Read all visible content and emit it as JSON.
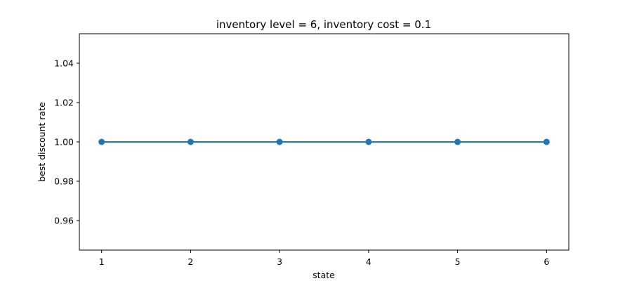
{
  "chart_data": {
    "type": "line",
    "title": "inventory level = 6, inventory cost = 0.1",
    "xlabel": "state",
    "ylabel": "best discount rate",
    "x": [
      1,
      2,
      3,
      4,
      5,
      6
    ],
    "series": [
      {
        "values": [
          1.0,
          1.0,
          1.0,
          1.0,
          1.0,
          1.0
        ],
        "color": "#1f77b4",
        "marker": "circle"
      }
    ],
    "xlim": [
      0.75,
      6.25
    ],
    "ylim": [
      0.945,
      1.055
    ],
    "xticks": [
      1,
      2,
      3,
      4,
      5,
      6
    ],
    "xtick_labels": [
      "1",
      "2",
      "3",
      "4",
      "5",
      "6"
    ],
    "yticks": [
      0.96,
      0.98,
      1.0,
      1.02,
      1.04
    ],
    "ytick_labels": [
      "0.96",
      "0.98",
      "1.00",
      "1.02",
      "1.04"
    ],
    "grid": false,
    "legend": "none"
  }
}
